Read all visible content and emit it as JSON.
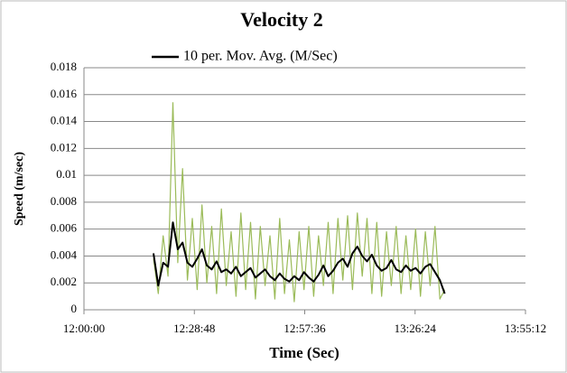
{
  "chart_data": {
    "type": "line",
    "title": "Velocity 2",
    "x_label": "Time (Sec)",
    "y_label": "Speed (m/sec)",
    "x": [
      44288,
      44364,
      44440,
      44516,
      44592,
      44668,
      44744,
      44820,
      44896,
      44972,
      45048,
      45124,
      45200,
      45276,
      45352,
      45428,
      45504,
      45580,
      45656,
      45732,
      45808,
      45884,
      45960,
      46036,
      46112,
      46188,
      46264,
      46340,
      46416,
      46492,
      46568,
      46644,
      46720,
      46796,
      46872,
      46948,
      47024,
      47100,
      47176,
      47252,
      47328,
      47404,
      47480,
      47556,
      47632,
      47708,
      47784,
      47860,
      47936,
      48012,
      48088,
      48164,
      48240,
      48316,
      48392,
      48468,
      48544,
      48620,
      48696,
      48772,
      48848
    ],
    "series": [
      {
        "color": "#9bbb59",
        "values": [
          0.0038,
          0.0012,
          0.0055,
          0.0025,
          0.0154,
          0.0035,
          0.0105,
          0.0022,
          0.0068,
          0.0015,
          0.0078,
          0.002,
          0.0062,
          0.0012,
          0.0075,
          0.0018,
          0.0058,
          0.001,
          0.0072,
          0.0015,
          0.0065,
          0.0008,
          0.0062,
          0.0018,
          0.0055,
          0.0008,
          0.0068,
          0.0012,
          0.0052,
          0.0006,
          0.0058,
          0.0015,
          0.0062,
          0.001,
          0.0055,
          0.0018,
          0.0065,
          0.0012,
          0.0068,
          0.0022,
          0.007,
          0.0015,
          0.0072,
          0.0025,
          0.0068,
          0.0012,
          0.0065,
          0.001,
          0.0058,
          0.0018,
          0.0062,
          0.0012,
          0.0055,
          0.0015,
          0.006,
          0.001,
          0.0058,
          0.0018,
          0.0062,
          0.0008,
          0.0015
        ]
      },
      {
        "name": "10 per. Mov. Avg. (M/Sec)",
        "color": "#000000",
        "values": [
          0.0042,
          0.0018,
          0.0035,
          0.0032,
          0.0065,
          0.0045,
          0.005,
          0.0035,
          0.0032,
          0.0038,
          0.0045,
          0.0033,
          0.003,
          0.0036,
          0.0028,
          0.003,
          0.0027,
          0.0032,
          0.0025,
          0.0028,
          0.0031,
          0.0024,
          0.0027,
          0.003,
          0.0025,
          0.0022,
          0.0027,
          0.0023,
          0.0021,
          0.0025,
          0.0022,
          0.0028,
          0.0024,
          0.0021,
          0.0026,
          0.0033,
          0.0025,
          0.0029,
          0.0035,
          0.0038,
          0.0032,
          0.0042,
          0.0047,
          0.004,
          0.0036,
          0.0041,
          0.0033,
          0.0029,
          0.0031,
          0.0037,
          0.003,
          0.0028,
          0.0033,
          0.0029,
          0.0031,
          0.0027,
          0.0032,
          0.0034,
          0.0028,
          0.0022,
          0.0012
        ]
      }
    ],
    "xlim": [
      43200,
      50112
    ],
    "xticks": [
      {
        "value": 43200,
        "label": "12:00:00"
      },
      {
        "value": 44928,
        "label": "12:28:48"
      },
      {
        "value": 46656,
        "label": "12:57:36"
      },
      {
        "value": 48384,
        "label": "13:26:24"
      },
      {
        "value": 50112,
        "label": "13:55:12"
      }
    ],
    "ylim": [
      0,
      0.018
    ],
    "yticks": [
      0,
      0.002,
      0.004,
      0.006,
      0.008,
      0.01,
      0.012,
      0.014,
      0.016,
      0.018
    ],
    "grid": true,
    "legend": "top"
  }
}
